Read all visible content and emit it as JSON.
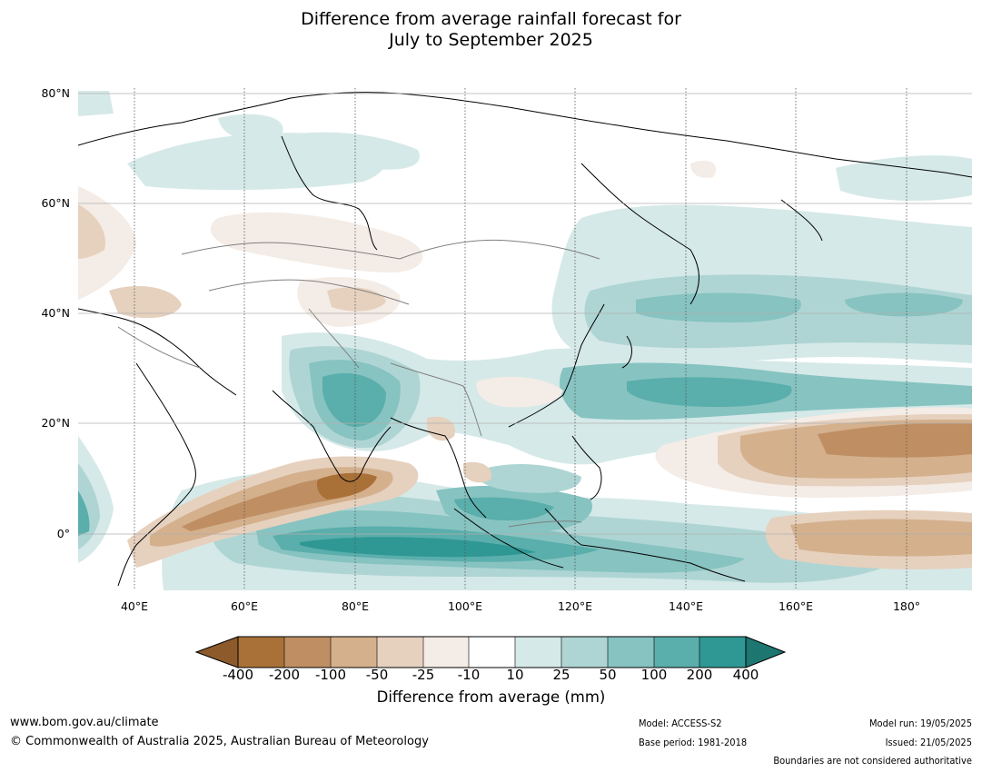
{
  "title": {
    "line1": "Difference from average rainfall forecast for",
    "line2": "July to September 2025"
  },
  "map": {
    "lat_ticks": [
      "80°N",
      "60°N",
      "40°N",
      "20°N",
      "0°"
    ],
    "lon_ticks": [
      "40°E",
      "60°E",
      "80°E",
      "100°E",
      "120°E",
      "140°E",
      "160°E",
      "180°"
    ],
    "colors": {
      "dry_extreme": "#8c5a2b",
      "dry_400": "#a97138",
      "dry_200": "#bf8f63",
      "dry_100": "#d4b08d",
      "dry_50": "#e6d1be",
      "dry_25": "#f4ece6",
      "neutral": "#ffffff",
      "wet_10": "#d5e9e8",
      "wet_25": "#aed5d4",
      "wet_50": "#86c3c1",
      "wet_100": "#5aaeab",
      "wet_200": "#2f9894",
      "wet_extreme": "#1e7671",
      "coast": "#000000",
      "border": "#808080"
    }
  },
  "colorbar": {
    "ticks": [
      "-400",
      "-200",
      "-100",
      "-50",
      "-25",
      "-10",
      "10",
      "25",
      "50",
      "100",
      "200",
      "400"
    ],
    "caption": "Difference from average (mm)"
  },
  "footer": {
    "website": "www.bom.gov.au/climate",
    "copyright": "© Commonwealth of Australia 2025, Australian Bureau of Meteorology",
    "model": "Model: ACCESS-S2",
    "base_period": "Base period: 1981-2018",
    "model_run": "Model run: 19/05/2025",
    "issued": "Issued: 21/05/2025",
    "disclaimer": "Boundaries are not considered authoritative"
  }
}
